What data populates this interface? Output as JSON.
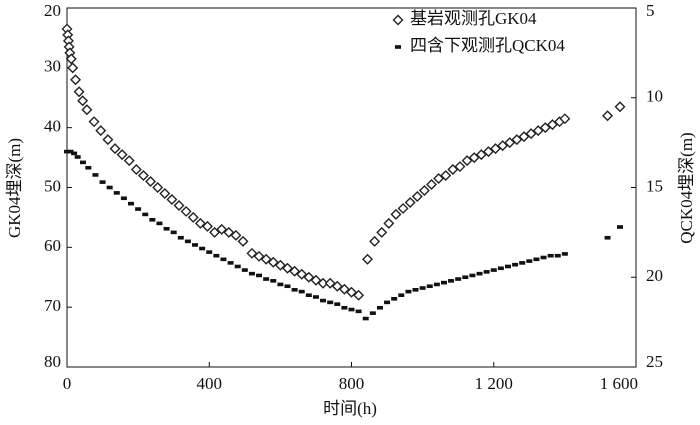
{
  "chart_data": {
    "type": "scatter",
    "x_label": "时间(h)",
    "y_label": "GK04埋深(m)",
    "y2_label": "QCK04埋深(m)",
    "xlim": [
      0,
      1600
    ],
    "xticks": [
      0,
      400,
      800,
      {
        "value": 1200,
        "label": "1 200"
      },
      {
        "value": 1600,
        "label": "1 600"
      }
    ],
    "ylim": [
      80,
      20
    ],
    "yticks": [
      20,
      30,
      40,
      50,
      60,
      70,
      80
    ],
    "y2lim": [
      25,
      5
    ],
    "y2ticks": [
      5,
      10,
      15,
      20,
      25
    ],
    "legend": "top-right",
    "series": [
      {
        "name": "基岩观测孔GK04",
        "color": "#222222",
        "marker": "diamond",
        "x": [
          0,
          2,
          4,
          6,
          8,
          12,
          16,
          24,
          34,
          44,
          56,
          76,
          95,
          115,
          135,
          155,
          175,
          195,
          215,
          235,
          255,
          275,
          295,
          315,
          335,
          355,
          375,
          395,
          415,
          435,
          455,
          475,
          495,
          520,
          540,
          560,
          580,
          600,
          620,
          640,
          660,
          680,
          700,
          720,
          740,
          760,
          780,
          800,
          820,
          845,
          865,
          885,
          905,
          925,
          945,
          965,
          985,
          1005,
          1025,
          1045,
          1065,
          1085,
          1105,
          1125,
          1145,
          1165,
          1185,
          1205,
          1225,
          1245,
          1265,
          1285,
          1305,
          1325,
          1345,
          1365,
          1385,
          1400,
          1520,
          1555
        ],
        "values": [
          23.5,
          24.5,
          25.5,
          26.5,
          27.5,
          28.5,
          30,
          32,
          34,
          35.5,
          37,
          39,
          40.5,
          42,
          43.5,
          44.5,
          45.5,
          47,
          48,
          49,
          50,
          51,
          52,
          53,
          54,
          55,
          56,
          56.5,
          57.5,
          57,
          57.5,
          58,
          59,
          61,
          61.5,
          62,
          62.5,
          63,
          63.5,
          64,
          64.5,
          65,
          65.5,
          66,
          66,
          66.5,
          67,
          67.5,
          68,
          62,
          59,
          57.5,
          56,
          54.5,
          53.5,
          52.5,
          51.5,
          50.5,
          49.5,
          48.5,
          48,
          47,
          46.5,
          45.5,
          45,
          44.5,
          44,
          43.5,
          43,
          42.5,
          42,
          41.5,
          41,
          40.5,
          40,
          39.5,
          39,
          38.5,
          38,
          36.5
        ]
      },
      {
        "name": "四含下观测孔QCK04",
        "color": "#111111",
        "marker": "square",
        "axis": "y2",
        "x": [
          0,
          10,
          20,
          30,
          45,
          60,
          80,
          100,
          120,
          140,
          160,
          180,
          200,
          220,
          240,
          260,
          280,
          300,
          320,
          340,
          360,
          380,
          400,
          420,
          440,
          460,
          480,
          500,
          520,
          540,
          560,
          580,
          600,
          620,
          640,
          660,
          680,
          700,
          720,
          740,
          760,
          780,
          800,
          820,
          840,
          860,
          880,
          900,
          920,
          940,
          960,
          980,
          1000,
          1020,
          1040,
          1060,
          1080,
          1100,
          1120,
          1140,
          1160,
          1180,
          1200,
          1220,
          1240,
          1260,
          1280,
          1300,
          1320,
          1340,
          1360,
          1380,
          1400,
          1520,
          1555
        ],
        "values": [
          13,
          13,
          13.1,
          13.3,
          13.6,
          13.9,
          14.3,
          14.7,
          15,
          15.3,
          15.6,
          15.9,
          16.2,
          16.5,
          16.8,
          17,
          17.3,
          17.5,
          17.8,
          18,
          18.2,
          18.4,
          18.6,
          18.8,
          19,
          19.2,
          19.4,
          19.6,
          19.8,
          19.9,
          20.1,
          20.2,
          20.4,
          20.5,
          20.7,
          20.8,
          21,
          21.1,
          21.3,
          21.4,
          21.5,
          21.7,
          21.8,
          21.9,
          22.3,
          22,
          21.7,
          21.4,
          21.2,
          21,
          20.8,
          20.7,
          20.6,
          20.5,
          20.4,
          20.3,
          20.2,
          20.1,
          20,
          19.9,
          19.8,
          19.7,
          19.6,
          19.5,
          19.4,
          19.3,
          19.2,
          19.1,
          19,
          18.9,
          18.8,
          18.8,
          18.7,
          17.8,
          17.2
        ]
      }
    ]
  }
}
